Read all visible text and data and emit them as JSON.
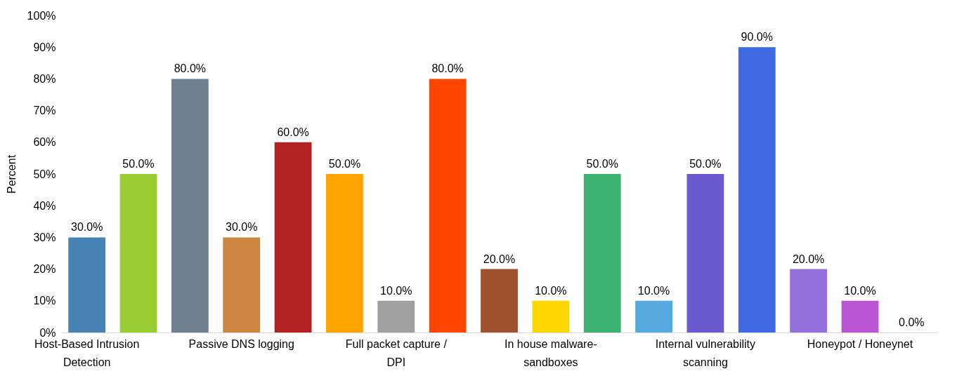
{
  "chart_data": {
    "type": "bar",
    "ylabel": "Percent",
    "categories": [
      "Host-Based Intrusion Detection",
      null,
      null,
      "Passive DNS logging",
      null,
      null,
      "Full packet capture / DPI",
      null,
      null,
      "In house malware-sandboxes",
      null,
      null,
      "Internal vulnerability scanning",
      null,
      null,
      "Honeypot / Honeynet",
      null
    ],
    "values": [
      30,
      50,
      80,
      30,
      60,
      50,
      10,
      80,
      20,
      10,
      50,
      10,
      50,
      90,
      20,
      10,
      0
    ],
    "value_labels": [
      "30.0%",
      "50.0%",
      "80.0%",
      "30.0%",
      "60.0%",
      "50.0%",
      "10.0%",
      "80.0%",
      "20.0%",
      "10.0%",
      "50.0%",
      "10.0%",
      "50.0%",
      "90.0%",
      "20.0%",
      "10.0%",
      "0.0%"
    ],
    "colors": [
      "#4682b4",
      "#9acd32",
      "#708090",
      "#cd853f",
      "#b22222",
      "#ffa500",
      "#a0a0a0",
      "#ff4500",
      "#a0522d",
      "#ffd700",
      "#3cb371",
      "#56aadf",
      "#6a5acd",
      "#4169e1",
      "#9370db",
      "#ba55d3",
      "#87ceeb"
    ],
    "ylim": [
      0,
      100
    ],
    "yticks": [
      {
        "value": 0,
        "label": "0%"
      },
      {
        "value": 10,
        "label": "10%"
      },
      {
        "value": 20,
        "label": "20%"
      },
      {
        "value": 30,
        "label": "30%"
      },
      {
        "value": 40,
        "label": "40%"
      },
      {
        "value": 50,
        "label": "50%"
      },
      {
        "value": 60,
        "label": "60%"
      },
      {
        "value": 70,
        "label": "70%"
      },
      {
        "value": 80,
        "label": "80%"
      },
      {
        "value": 90,
        "label": "90%"
      },
      {
        "value": 100,
        "label": "100%"
      }
    ],
    "grid": false,
    "legend": false
  }
}
